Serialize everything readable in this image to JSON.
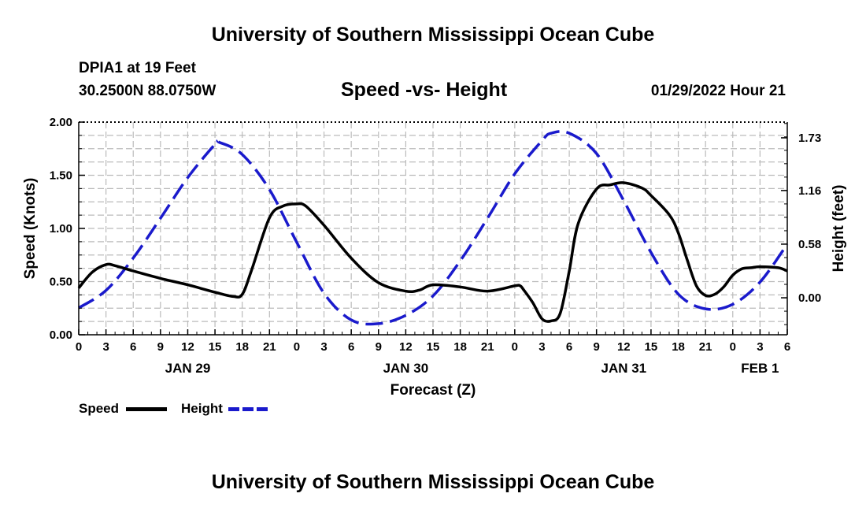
{
  "header": {
    "title": "University of Southern Mississippi Ocean Cube",
    "station": "DPIA1 at 19 Feet",
    "coords": "30.2500N  88.0750W",
    "subtitle": "Speed -vs- Height",
    "datetime": "01/29/2022 Hour 21"
  },
  "footer": {
    "title": "University of Southern Mississippi Ocean Cube"
  },
  "legend": {
    "speed": "Speed",
    "height": "Height"
  },
  "colors": {
    "speed": "#000000",
    "height": "#1a1acc",
    "grid": "#bbbbbb"
  },
  "chart_data": {
    "type": "line",
    "title": "Speed -vs- Height",
    "xlabel": "Forecast (Z)",
    "ylabel": "Speed (Knots)",
    "y2label": "Height (feet)",
    "ylim": [
      0,
      2
    ],
    "y2lim": [
      -0.4,
      1.9
    ],
    "xlim": [
      0,
      78
    ],
    "x_tick_labels": [
      "0",
      "3",
      "6",
      "9",
      "12",
      "15",
      "18",
      "21",
      "0",
      "3",
      "6",
      "9",
      "12",
      "15",
      "18",
      "21",
      "0",
      "3",
      "6",
      "9",
      "12",
      "15",
      "18",
      "21",
      "0",
      "3",
      "6"
    ],
    "date_labels": [
      {
        "text": "JAN 29",
        "x": 12
      },
      {
        "text": "JAN 30",
        "x": 36
      },
      {
        "text": "JAN 31",
        "x": 60
      },
      {
        "text": "FEB 1",
        "x": 75
      }
    ],
    "y_ticks": [
      "0.00",
      "0.50",
      "1.00",
      "1.50",
      "2.00"
    ],
    "y_tick_values": [
      0,
      0.5,
      1.0,
      1.5,
      2.0
    ],
    "y2_ticks": [
      "0.00",
      "0.58",
      "1.16",
      "1.73"
    ],
    "y2_tick_values": [
      0,
      0.58,
      1.16,
      1.73
    ],
    "grid": true,
    "series": [
      {
        "name": "Speed",
        "axis": "left",
        "x": [
          0,
          1.5,
          3,
          4,
          6,
          9,
          12,
          15,
          17,
          18,
          19,
          21,
          22.5,
          24,
          25,
          27,
          30,
          33,
          36,
          37.5,
          39,
          42,
          45,
          48,
          48.6,
          49,
          50,
          51,
          52,
          53,
          54,
          55,
          57,
          58.5,
          60,
          62,
          63,
          65,
          66,
          67,
          68,
          69,
          70,
          71,
          72,
          73,
          74,
          75,
          77,
          78
        ],
        "values": [
          0.44,
          0.59,
          0.66,
          0.65,
          0.6,
          0.53,
          0.47,
          0.4,
          0.36,
          0.38,
          0.6,
          1.1,
          1.21,
          1.23,
          1.21,
          1.03,
          0.72,
          0.49,
          0.41,
          0.42,
          0.47,
          0.45,
          0.41,
          0.46,
          0.46,
          0.42,
          0.3,
          0.15,
          0.13,
          0.2,
          0.6,
          1.05,
          1.37,
          1.41,
          1.43,
          1.38,
          1.31,
          1.13,
          0.96,
          0.7,
          0.46,
          0.37,
          0.38,
          0.45,
          0.56,
          0.62,
          0.63,
          0.64,
          0.63,
          0.6
        ]
      },
      {
        "name": "Height",
        "axis": "right",
        "x": [
          0,
          3,
          6,
          9,
          12,
          15,
          15.5,
          18,
          21,
          24,
          27,
          30,
          33,
          36,
          39,
          42,
          45,
          48,
          51,
          52,
          54,
          57,
          60,
          63,
          66,
          69,
          72,
          75,
          78
        ],
        "values": [
          -0.11,
          0.08,
          0.43,
          0.86,
          1.3,
          1.66,
          1.68,
          1.55,
          1.17,
          0.6,
          0.05,
          -0.24,
          -0.28,
          -0.19,
          0.02,
          0.4,
          0.86,
          1.34,
          1.7,
          1.78,
          1.78,
          1.56,
          1.05,
          0.49,
          0.04,
          -0.12,
          -0.07,
          0.17,
          0.58
        ]
      }
    ]
  }
}
